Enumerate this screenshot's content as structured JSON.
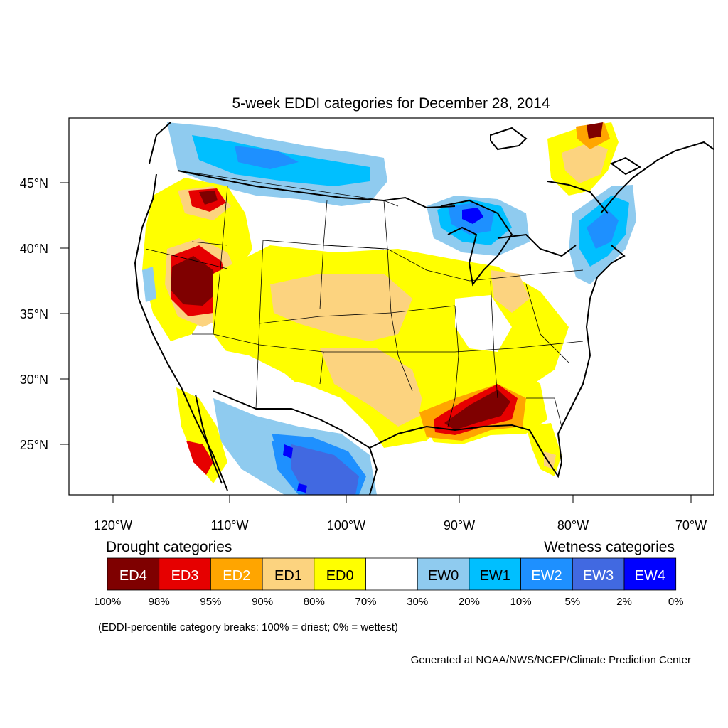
{
  "title": "5-week EDDI categories for December 28, 2014",
  "lat_labels": [
    "45°N",
    "40°N",
    "35°N",
    "30°N",
    "25°N"
  ],
  "lon_labels": [
    "120°W",
    "110°W",
    "100°W",
    "90°W",
    "80°W",
    "70°W"
  ],
  "legend": {
    "drought_title": "Drought categories",
    "wetness_title": "Wetness categories",
    "categories": [
      {
        "label": "ED4",
        "color": "#7f0000",
        "text_color": "#ffffff"
      },
      {
        "label": "ED3",
        "color": "#e60000",
        "text_color": "#ffffff"
      },
      {
        "label": "ED2",
        "color": "#ffa500",
        "text_color": "#ffffff"
      },
      {
        "label": "ED1",
        "color": "#fcd37f",
        "text_color": "#000000"
      },
      {
        "label": "ED0",
        "color": "#ffff00",
        "text_color": "#000000"
      },
      {
        "label": "",
        "color": "#ffffff",
        "text_color": "#000000"
      },
      {
        "label": "EW0",
        "color": "#8fcbef",
        "text_color": "#000000"
      },
      {
        "label": "EW1",
        "color": "#00bfff",
        "text_color": "#000000"
      },
      {
        "label": "EW2",
        "color": "#1e90ff",
        "text_color": "#ffffff"
      },
      {
        "label": "EW3",
        "color": "#4169e1",
        "text_color": "#ffffff"
      },
      {
        "label": "EW4",
        "color": "#0000ff",
        "text_color": "#ffffff"
      }
    ],
    "breaks": [
      "100%",
      "98%",
      "95%",
      "90%",
      "80%",
      "70%",
      "30%",
      "20%",
      "10%",
      "5%",
      "2%",
      "0%"
    ],
    "note": "(EDDI-percentile category breaks: 100% = driest; 0% = wettest)"
  },
  "credit": "Generated at NOAA/NWS/NCEP/Climate Prediction Center"
}
